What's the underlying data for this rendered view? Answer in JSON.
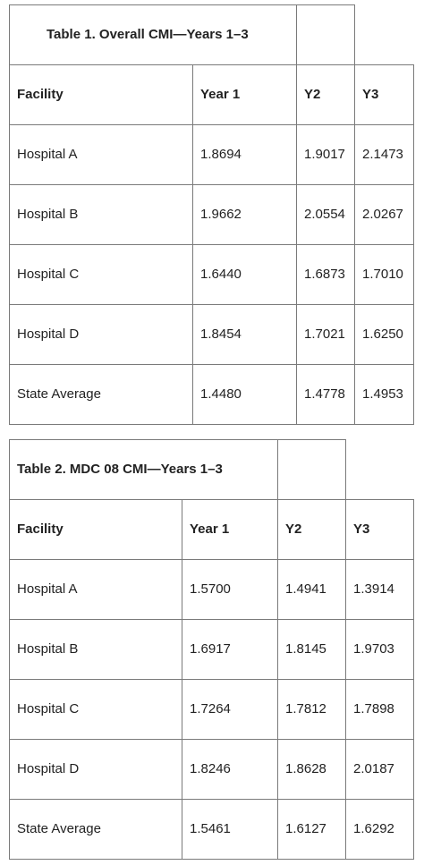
{
  "table1": {
    "caption": "Table 1. Overall CMI—Years 1–3",
    "headers": [
      "Facility",
      "Year 1",
      "Y2",
      "Y3"
    ],
    "rows": [
      [
        "Hospital A",
        "1.8694",
        "1.9017",
        "2.1473"
      ],
      [
        "Hospital B",
        "1.9662",
        "2.0554",
        "2.0267"
      ],
      [
        "Hospital C",
        "1.6440",
        "1.6873",
        "1.7010"
      ],
      [
        "Hospital D",
        "1.8454",
        "1.7021",
        "1.6250"
      ],
      [
        "State Average",
        "1.4480",
        "1.4778",
        "1.4953"
      ]
    ]
  },
  "table2": {
    "caption": "Table 2. MDC 08 CMI—Years 1–3",
    "headers": [
      "Facility",
      "Year 1",
      "Y2",
      "Y3"
    ],
    "rows": [
      [
        "Hospital A",
        "1.5700",
        "1.4941",
        "1.3914"
      ],
      [
        "Hospital B",
        "1.6917",
        "1.8145",
        "1.9703"
      ],
      [
        "Hospital C",
        "1.7264",
        "1.7812",
        "1.7898"
      ],
      [
        "Hospital D",
        "1.8246",
        "1.8628",
        "2.0187"
      ],
      [
        "State Average",
        "1.5461",
        "1.6127",
        "1.6292"
      ]
    ]
  }
}
